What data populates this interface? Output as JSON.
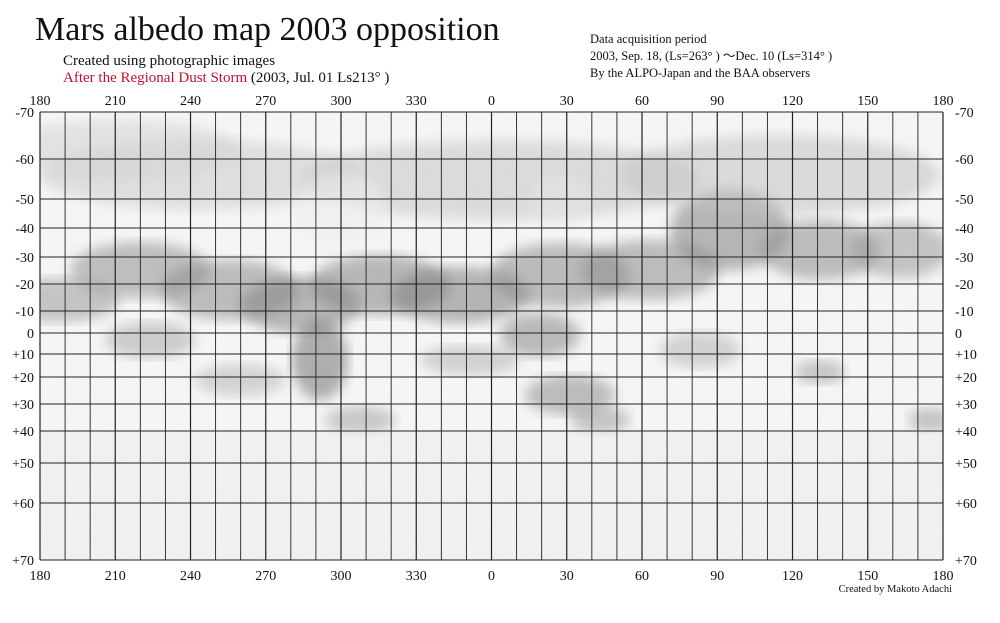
{
  "title": "Mars albedo map 2003 opposition",
  "subtitle": "Created using photographic images",
  "storm_label": "After the Regional Dust Storm",
  "storm_date": "(2003, Jul. 01  Ls213°  )",
  "info": {
    "line1": "Data acquisition period",
    "line2": "2003, Sep. 18,  (Ls=263°  )  ～Dec. 10 (Ls=314°  )",
    "line3": "By the ALPO-Japan and the BAA observers"
  },
  "credit": "Created by Makoto Adachi",
  "map": {
    "longitude_labels": [
      "180",
      "210",
      "240",
      "270",
      "300",
      "330",
      "0",
      "30",
      "60",
      "90",
      "120",
      "150",
      "180"
    ],
    "latitude_labels": [
      "-70",
      "-60",
      "-50",
      "-40",
      "-30",
      "-20",
      "-10",
      "0",
      "+10",
      "+20",
      "+30",
      "+40",
      "+50",
      "+60",
      "+70"
    ],
    "latitude_values": [
      -70,
      -60,
      -50,
      -40,
      -30,
      -20,
      -10,
      0,
      10,
      20,
      30,
      40,
      50,
      60,
      70
    ],
    "grid_longitude_step_deg": 10,
    "projection": "simple cylindrical",
    "shading": "pencil-drawn albedo features, grayscale"
  }
}
